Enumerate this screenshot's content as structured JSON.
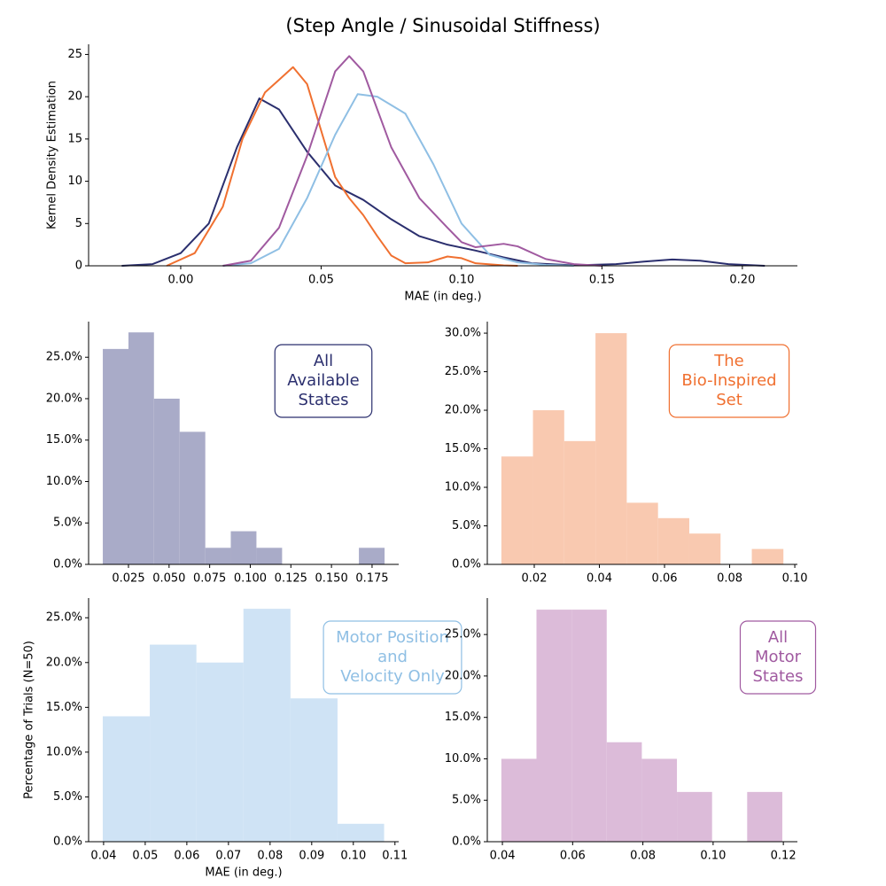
{
  "title": "(Step Angle / Sinusoidal Stiffness)",
  "chart_data": [
    {
      "type": "line",
      "xlabel": "MAE (in deg.)",
      "ylabel": "Kernel Density Estimation",
      "xlim": [
        -0.0328,
        0.2196
      ],
      "ylim": [
        0,
        26.2
      ],
      "xticks": [
        {
          "value": 0,
          "label": "0.00"
        },
        0.05,
        {
          "value": 0.1,
          "label": "0.10"
        },
        0.15,
        {
          "value": 0.2,
          "label": "0.20"
        }
      ],
      "yticks": [
        0,
        5,
        10,
        15,
        20,
        25
      ],
      "series": [
        {
          "color": "#2b2f6e",
          "x": [
            -0.021,
            -0.01,
            0,
            0.01,
            0.02,
            0.028,
            0.035,
            0.045,
            0.055,
            0.065,
            0.075,
            0.085,
            0.095,
            0.105,
            0.115,
            0.125,
            0.14,
            0.155,
            0.165,
            0.175,
            0.185,
            0.195,
            0.208
          ],
          "values": [
            0,
            0.2,
            1.5,
            5,
            14,
            19.8,
            18.5,
            13.5,
            9.5,
            7.8,
            5.5,
            3.5,
            2.5,
            1.8,
            1,
            0.3,
            0.05,
            0.2,
            0.5,
            0.75,
            0.6,
            0.2,
            0
          ]
        },
        {
          "color": "#f07030",
          "x": [
            -0.005,
            0.005,
            0.015,
            0.022,
            0.03,
            0.035,
            0.04,
            0.045,
            0.05,
            0.055,
            0.06,
            0.065,
            0.07,
            0.075,
            0.08,
            0.088,
            0.095,
            0.1,
            0.105,
            0.115,
            0.12
          ],
          "values": [
            0,
            1.5,
            7,
            15,
            20.5,
            22,
            23.5,
            21.5,
            16,
            10.5,
            8,
            6,
            3.5,
            1.2,
            0.3,
            0.4,
            1.1,
            0.9,
            0.3,
            0.05,
            0
          ]
        },
        {
          "color": "#8fbfe4",
          "x": [
            0.015,
            0.025,
            0.035,
            0.045,
            0.055,
            0.063,
            0.07,
            0.08,
            0.09,
            0.1,
            0.11,
            0.12,
            0.13,
            0.14
          ],
          "values": [
            0,
            0.3,
            2,
            8,
            15.5,
            20.3,
            20,
            18,
            12,
            5,
            1.3,
            0.4,
            0.1,
            0
          ]
        },
        {
          "color": "#a05aa0",
          "x": [
            0.015,
            0.025,
            0.035,
            0.045,
            0.055,
            0.06,
            0.065,
            0.075,
            0.085,
            0.095,
            0.1,
            0.105,
            0.115,
            0.12,
            0.13,
            0.14,
            0.15
          ],
          "values": [
            0,
            0.6,
            4.5,
            13,
            23,
            24.8,
            23,
            14,
            8,
            4.5,
            2.8,
            2.2,
            2.6,
            2.3,
            0.8,
            0.2,
            0
          ]
        }
      ]
    },
    {
      "type": "histogram",
      "color": "#a9abc8",
      "annotation_color": "#2b2f6e",
      "annotation": [
        "All",
        "Available",
        "States"
      ],
      "xlim": [
        0.00045,
        0.1914
      ],
      "ylim": [
        0,
        29.3
      ],
      "xticks": [
        0.025,
        {
          "value": 0.05,
          "label": "0.050"
        },
        0.075,
        {
          "value": 0.1,
          "label": "0.100"
        },
        0.125,
        {
          "value": 0.15,
          "label": "0.150"
        },
        0.175
      ],
      "yticks": [
        {
          "value": 0,
          "label": "0.0%"
        },
        {
          "value": 5,
          "label": "5.0%"
        },
        {
          "value": 10,
          "label": "10.0%"
        },
        {
          "value": 15,
          "label": "15.0%"
        },
        {
          "value": 20,
          "label": "20.0%"
        },
        {
          "value": 25,
          "label": "25.0%"
        }
      ],
      "bins": [
        0.0092,
        0.025,
        0.0407,
        0.0565,
        0.0723,
        0.088,
        0.1038,
        0.1196,
        0.1354,
        0.1511,
        0.1669,
        0.1827
      ],
      "values": [
        26,
        28,
        20,
        16,
        2,
        4,
        2,
        0,
        0,
        0,
        2
      ]
    },
    {
      "type": "histogram",
      "color": "#f9c9b0",
      "annotation_color": "#f07030",
      "annotation": [
        "The",
        "Bio-Inspired",
        "Set"
      ],
      "xlim": [
        0.00558,
        0.1008
      ],
      "ylim": [
        0,
        31.5
      ],
      "xticks": [
        0.02,
        0.04,
        0.06,
        0.08,
        {
          "value": 0.1,
          "label": "0.10"
        }
      ],
      "yticks": [
        {
          "value": 0,
          "label": "0.0%"
        },
        {
          "value": 5,
          "label": "5.0%"
        },
        {
          "value": 10,
          "label": "10.0%"
        },
        {
          "value": 15,
          "label": "15.0%"
        },
        {
          "value": 20,
          "label": "20.0%"
        },
        {
          "value": 25,
          "label": "25.0%"
        },
        {
          "value": 30,
          "label": "30.0%"
        }
      ],
      "bins": [
        0.0099,
        0.0196,
        0.0292,
        0.0388,
        0.0484,
        0.058,
        0.0676,
        0.0772,
        0.0868,
        0.0965
      ],
      "values": [
        14,
        20,
        16,
        30,
        8,
        6,
        4,
        0,
        2
      ]
    },
    {
      "type": "histogram",
      "color": "#cfe3f5",
      "annotation_color": "#8fbfe4",
      "annotation": [
        "Motor Position",
        "and",
        "Velocity Only"
      ],
      "xlabel": "MAE (in deg.)",
      "ylabel": "Percentage of Trials (N=50)",
      "xlim": [
        0.0364,
        0.1109
      ],
      "ylim": [
        0,
        27.2
      ],
      "xticks": [
        0.04,
        0.05,
        0.06,
        0.07,
        0.08,
        0.09,
        {
          "value": 0.1,
          "label": "0.10"
        },
        0.11
      ],
      "yticks": [
        {
          "value": 0,
          "label": "0.0%"
        },
        {
          "value": 5,
          "label": "5.0%"
        },
        {
          "value": 10,
          "label": "10.0%"
        },
        {
          "value": 15,
          "label": "15.0%"
        },
        {
          "value": 20,
          "label": "20.0%"
        },
        {
          "value": 25,
          "label": "25.0%"
        }
      ],
      "bins": [
        0.0398,
        0.0511,
        0.0623,
        0.0736,
        0.0849,
        0.0962,
        0.1074
      ],
      "values": [
        14,
        22,
        20,
        26,
        16,
        2
      ]
    },
    {
      "type": "histogram",
      "color": "#dcbbd9",
      "annotation_color": "#a05aa0",
      "annotation": [
        "All",
        "Motor",
        "States"
      ],
      "xlim": [
        0.0357,
        0.124
      ],
      "ylim": [
        0,
        29.4
      ],
      "xticks": [
        0.04,
        0.06,
        0.08,
        {
          "value": 0.1,
          "label": "0.10"
        },
        0.12
      ],
      "yticks": [
        {
          "value": 0,
          "label": "0.0%"
        },
        {
          "value": 5,
          "label": "5.0%"
        },
        {
          "value": 10,
          "label": "10.0%"
        },
        {
          "value": 15,
          "label": "15.0%"
        },
        {
          "value": 20,
          "label": "20.0%"
        },
        {
          "value": 25,
          "label": "25.0%"
        }
      ],
      "bins": [
        0.0397,
        0.0497,
        0.0597,
        0.0697,
        0.0797,
        0.0897,
        0.0997,
        0.1097,
        0.1197
      ],
      "values": [
        10,
        28,
        28,
        12,
        10,
        6,
        0,
        6
      ]
    }
  ]
}
